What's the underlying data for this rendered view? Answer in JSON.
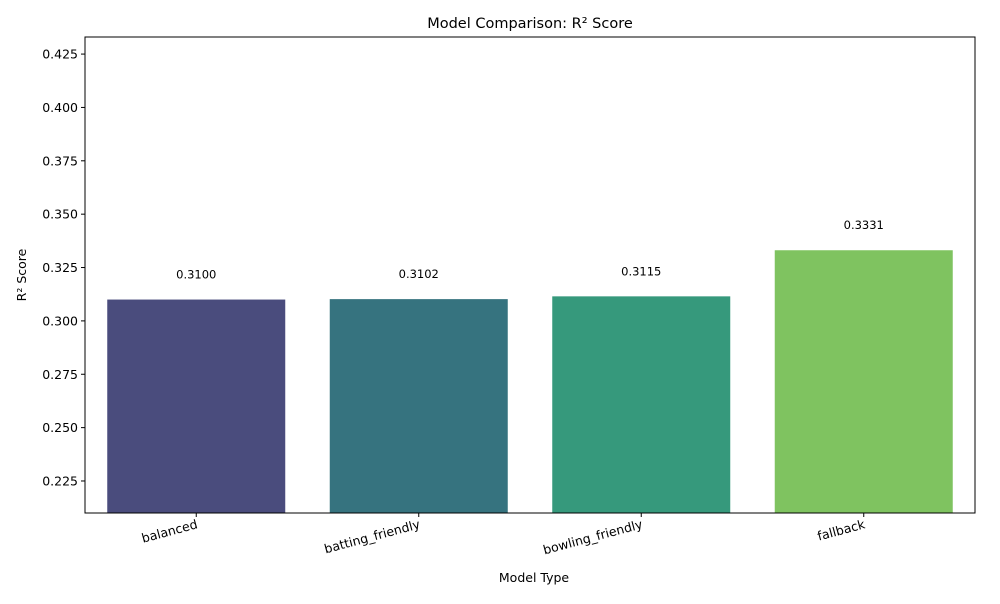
{
  "chart_data": {
    "type": "bar",
    "title": "Model Comparison: R² Score",
    "xlabel": "Model Type",
    "ylabel": "R² Score",
    "categories": [
      "balanced",
      "batting_friendly",
      "bowling_friendly",
      "fallback"
    ],
    "values": [
      0.31,
      0.3102,
      0.3115,
      0.3331
    ],
    "value_labels": [
      "0.3100",
      "0.3102",
      "0.3115",
      "0.3331"
    ],
    "colors": [
      "#4a4c7d",
      "#36737f",
      "#36997c",
      "#7fc360"
    ],
    "ylim": [
      0.21,
      0.433
    ],
    "yticks": [
      0.225,
      0.25,
      0.275,
      0.3,
      0.325,
      0.35,
      0.375,
      0.4,
      0.425
    ],
    "ytick_labels": [
      "0.225",
      "0.250",
      "0.275",
      "0.300",
      "0.325",
      "0.350",
      "0.375",
      "0.400",
      "0.425"
    ],
    "grid": false,
    "legend": "none",
    "x_tick_rotation": "15 degrees"
  }
}
